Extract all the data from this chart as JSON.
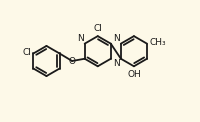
{
  "bg_color": "#fdf9e8",
  "bond_color": "#1a1a1a",
  "atom_color": "#1a1a1a",
  "lw": 1.3,
  "fs": 6.5,
  "figsize": [
    2.0,
    1.22
  ],
  "dpi": 100,
  "xlim": [
    -1,
    11
  ],
  "ylim": [
    -1,
    7
  ]
}
